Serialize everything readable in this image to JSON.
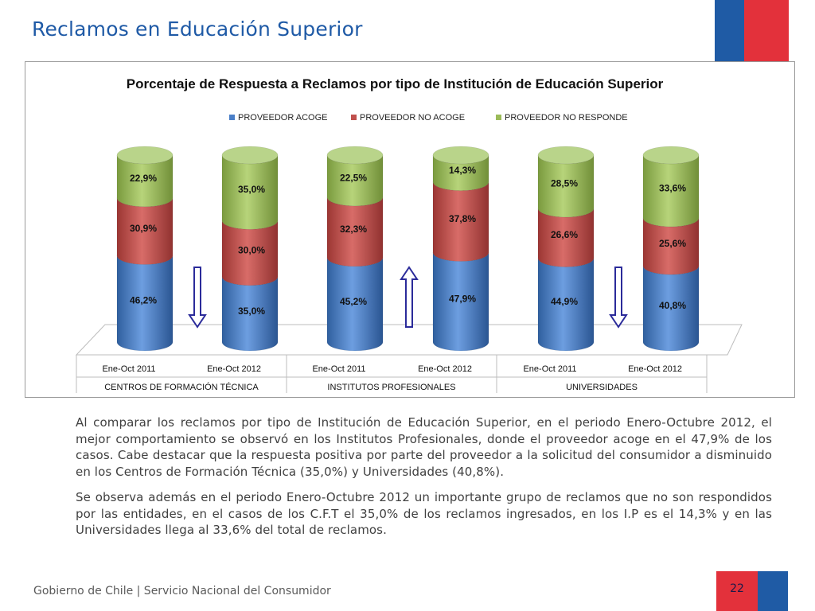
{
  "slide": {
    "title": "Reclamos en Educación Superior",
    "page_number": "22",
    "footer": "Gobierno de Chile | Servicio Nacional del Consumidor"
  },
  "colors": {
    "title": "#1f5aa6",
    "acoge": "#4a7fc8",
    "no_acoge": "#c0504d",
    "no_responde": "#9bbb59",
    "arrow": "#2b2b9a",
    "flag_blue": "#1f5ba5",
    "flag_red": "#e3313b"
  },
  "chart_data": {
    "type": "bar",
    "stacked": true,
    "title": "Porcentaje de Respuesta a Reclamos por tipo de Institución de Educación Superior",
    "legend_position": "top",
    "categories": [
      "Ene-Oct 2011",
      "Ene-Oct 2012",
      "Ene-Oct 2011",
      "Ene-Oct 2012",
      "Ene-Oct 2011",
      "Ene-Oct 2012"
    ],
    "groups": [
      "CENTROS DE FORMACIÓN TÉCNICA",
      "INSTITUTOS PROFESIONALES",
      "UNIVERSIDADES"
    ],
    "series": [
      {
        "name": "PROVEEDOR ACOGE",
        "values": [
          46.2,
          35.0,
          45.2,
          47.9,
          44.9,
          40.8
        ],
        "labels": [
          "46,2%",
          "35,0%",
          "45,2%",
          "47,9%",
          "44,9%",
          "40,8%"
        ]
      },
      {
        "name": "PROVEEDOR NO ACOGE",
        "values": [
          30.9,
          30.0,
          32.3,
          37.8,
          26.6,
          25.6
        ],
        "labels": [
          "30,9%",
          "30,0%",
          "32,3%",
          "37,8%",
          "26,6%",
          "25,6%"
        ]
      },
      {
        "name": "PROVEEDOR NO RESPONDE",
        "values": [
          22.9,
          35.0,
          22.5,
          14.3,
          28.5,
          33.6
        ],
        "labels": [
          "22,9%",
          "35,0%",
          "22,5%",
          "14,3%",
          "28,5%",
          "33,6%"
        ]
      }
    ],
    "trend_arrows": [
      "down",
      "up",
      "down"
    ],
    "grid": false
  },
  "paragraphs": [
    "Al comparar los reclamos por tipo de Institución de Educación Superior, en el periodo Enero-Octubre 2012, el mejor comportamiento se observó en los Institutos Profesionales, donde el proveedor acoge en el 47,9% de los casos. Cabe destacar que la respuesta positiva por parte del proveedor a la solicitud del consumidor a disminuido en los Centros de Formación Técnica (35,0%) y Universidades (40,8%).",
    "Se observa además en el periodo Enero-Octubre 2012 un importante grupo de reclamos que no son respondidos por las entidades, en el casos de los C.F.T el 35,0% de los reclamos ingresados, en los I.P es el 14,3% y en las Universidades llega al 33,6% del total de reclamos."
  ]
}
